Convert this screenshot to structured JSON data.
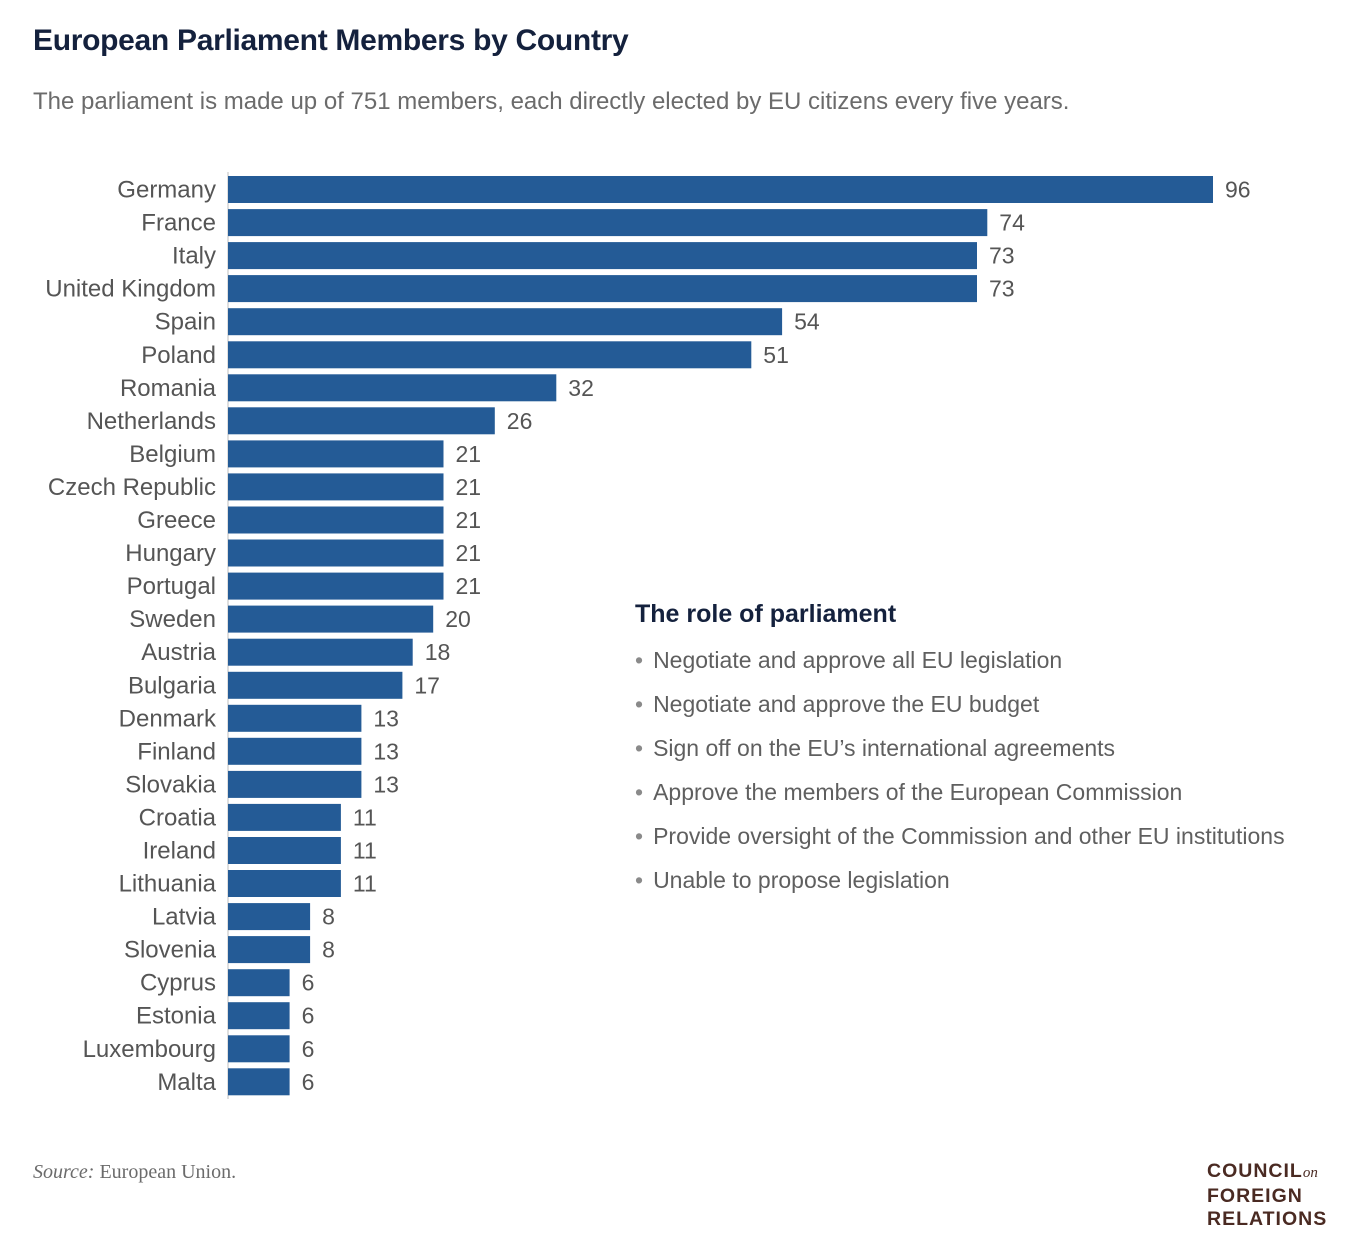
{
  "title": "European Parliament Members by Country",
  "subtitle": "The parliament is made up of 751 members, each directly elected by EU citizens every five years.",
  "chart_data": {
    "type": "bar",
    "orientation": "horizontal",
    "categories": [
      "Germany",
      "France",
      "Italy",
      "United Kingdom",
      "Spain",
      "Poland",
      "Romania",
      "Netherlands",
      "Belgium",
      "Czech Republic",
      "Greece",
      "Hungary",
      "Portugal",
      "Sweden",
      "Austria",
      "Bulgaria",
      "Denmark",
      "Finland",
      "Slovakia",
      "Croatia",
      "Ireland",
      "Lithuania",
      "Latvia",
      "Slovenia",
      "Cyprus",
      "Estonia",
      "Luxembourg",
      "Malta"
    ],
    "values": [
      96,
      74,
      73,
      73,
      54,
      51,
      32,
      26,
      21,
      21,
      21,
      21,
      21,
      20,
      18,
      17,
      13,
      13,
      13,
      11,
      11,
      11,
      8,
      8,
      6,
      6,
      6,
      6
    ],
    "bar_color": "#245b96",
    "xlim": [
      0,
      96
    ],
    "grid": false,
    "data_labels": true
  },
  "role": {
    "title": "The role of parliament",
    "items": [
      "Negotiate and approve all EU legislation",
      "Negotiate and approve the EU budget",
      "Sign off on the EU’s international agreements",
      "Approve the members of the European Commission",
      "Provide oversight of the Commission and other EU institutions",
      "Unable to propose legislation"
    ]
  },
  "source": {
    "label": "Source:",
    "text": "European Union."
  },
  "logo": {
    "line1": "COUNCIL",
    "on": "on",
    "line2": "FOREIGN",
    "line3": "RELATIONS"
  }
}
